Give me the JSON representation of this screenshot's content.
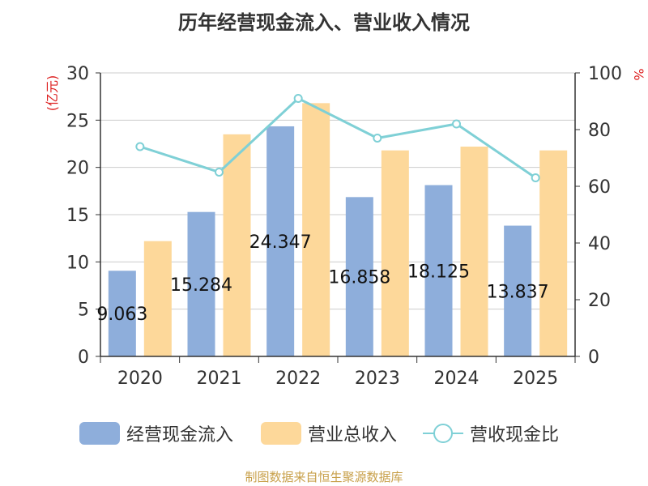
{
  "title": "历年经营现金流入、营业收入情况",
  "footer": "制图数据来自恒生聚源数据库",
  "colors": {
    "cash_inflow": "#8eaedb",
    "revenue": "#fdd89a",
    "ratio_line": "#7fd0d6",
    "left_unit": "#dd2222",
    "right_unit": "#dd2222"
  },
  "chart_data": {
    "type": "bar",
    "categories": [
      "2020",
      "2021",
      "2022",
      "2023",
      "2024",
      "2025"
    ],
    "series": [
      {
        "name": "经营现金流入",
        "type": "bar",
        "axis": "left",
        "values": [
          9.063,
          15.284,
          24.347,
          16.858,
          18.125,
          13.837
        ],
        "data_labels": [
          "9.063",
          "15.284",
          "24.347",
          "16.858",
          "18.125",
          "13.837"
        ]
      },
      {
        "name": "营业总收入",
        "type": "bar",
        "axis": "left",
        "values": [
          12.2,
          23.5,
          26.8,
          21.8,
          22.2,
          21.8
        ]
      },
      {
        "name": "营收现金比",
        "type": "line",
        "axis": "right",
        "values": [
          74,
          65,
          91,
          77,
          82,
          63
        ]
      }
    ],
    "left_axis": {
      "unit": "(亿元)",
      "ylim": [
        0,
        30
      ],
      "ticks": [
        "0",
        "5",
        "10",
        "15",
        "20",
        "25",
        "30"
      ]
    },
    "right_axis": {
      "unit": "%",
      "ylim": [
        0,
        100
      ],
      "ticks": [
        "0",
        "20",
        "40",
        "60",
        "80",
        "100"
      ]
    },
    "grid": true,
    "legend_position": "bottom"
  }
}
